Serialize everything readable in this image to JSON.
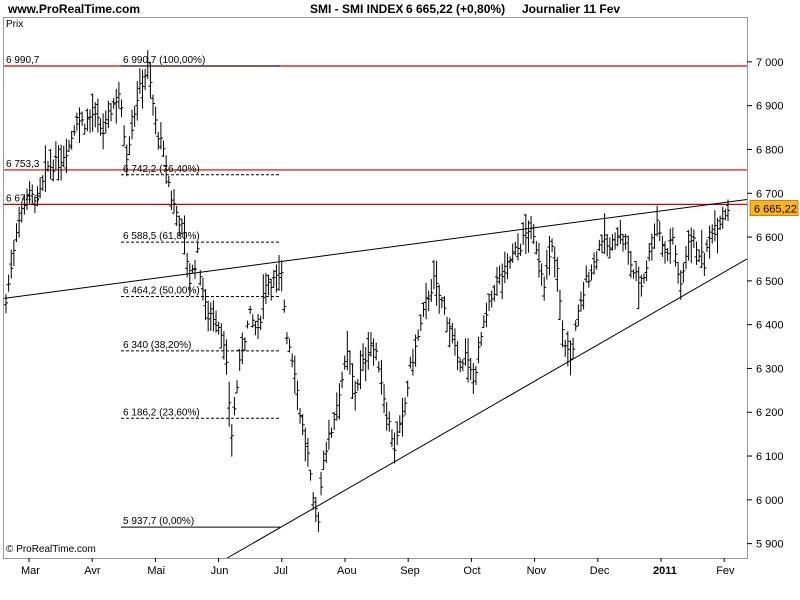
{
  "header": {
    "site": "www.ProRealTime.com",
    "title": "SMI - SMI INDEX",
    "price": "6 665,22 (+0,80%)",
    "period": "Journalier  11 Fev"
  },
  "ylabel": "Prix",
  "copyright": "© ProRealTime.com",
  "colors": {
    "bars": "#000000",
    "resistance": "#d40000",
    "last_price_badge": "#ffb31a",
    "fib": "#000000"
  },
  "chart_data": {
    "type": "ohlc",
    "title": "SMI - SMI INDEX",
    "ylim": [
      5890,
      7050
    ],
    "yticks": [
      5900,
      6000,
      6100,
      6200,
      6300,
      6400,
      6500,
      6600,
      6700,
      6800,
      6900,
      7000
    ],
    "ytick_labels": [
      "5 900",
      "6 000",
      "6 100",
      "6 200",
      "6 300",
      "6 400",
      "6 500",
      "6 600",
      "6 700",
      "6 800",
      "6 900",
      "7 000"
    ],
    "x_months": [
      {
        "label": "Mar",
        "bold": false
      },
      {
        "label": "Avr",
        "bold": false
      },
      {
        "label": "Mai",
        "bold": false
      },
      {
        "label": "Jun",
        "bold": false
      },
      {
        "label": "Jul",
        "bold": false
      },
      {
        "label": "Aou",
        "bold": false
      },
      {
        "label": "Sep",
        "bold": false
      },
      {
        "label": "Oct",
        "bold": false
      },
      {
        "label": "Nov",
        "bold": false
      },
      {
        "label": "Dec",
        "bold": false
      },
      {
        "label": "2011",
        "bold": true
      },
      {
        "label": "Fev",
        "bold": false
      }
    ],
    "last_price": "6 665,22",
    "last_value": 6665.22,
    "series": [
      {
        "name": "SMI",
        "anchors": [
          [
            0,
            6450
          ],
          [
            4,
            6620
          ],
          [
            8,
            6700
          ],
          [
            12,
            6680
          ],
          [
            16,
            6760
          ],
          [
            20,
            6770
          ],
          [
            24,
            6810
          ],
          [
            27,
            6870
          ],
          [
            30,
            6860
          ],
          [
            33,
            6880
          ],
          [
            37,
            6840
          ],
          [
            40,
            6890
          ],
          [
            43,
            6930
          ],
          [
            46,
            6790
          ],
          [
            50,
            6920
          ],
          [
            54,
            6990
          ],
          [
            57,
            6860
          ],
          [
            60,
            6790
          ],
          [
            63,
            6690
          ],
          [
            66,
            6640
          ],
          [
            68,
            6600
          ],
          [
            70,
            6500
          ],
          [
            73,
            6560
          ],
          [
            76,
            6440
          ],
          [
            79,
            6420
          ],
          [
            82,
            6390
          ],
          [
            84,
            6300
          ],
          [
            86,
            6150
          ],
          [
            88,
            6260
          ],
          [
            90,
            6350
          ],
          [
            93,
            6420
          ],
          [
            96,
            6380
          ],
          [
            99,
            6500
          ],
          [
            102,
            6500
          ],
          [
            105,
            6510
          ],
          [
            107,
            6380
          ],
          [
            110,
            6300
          ],
          [
            112,
            6200
          ],
          [
            115,
            6100
          ],
          [
            117,
            5990
          ],
          [
            119,
            5960
          ],
          [
            121,
            6100
          ],
          [
            124,
            6160
          ],
          [
            127,
            6250
          ],
          [
            130,
            6330
          ],
          [
            133,
            6250
          ],
          [
            136,
            6310
          ],
          [
            139,
            6360
          ],
          [
            142,
            6310
          ],
          [
            145,
            6200
          ],
          [
            148,
            6120
          ],
          [
            151,
            6180
          ],
          [
            154,
            6300
          ],
          [
            157,
            6370
          ],
          [
            160,
            6450
          ],
          [
            163,
            6500
          ],
          [
            166,
            6450
          ],
          [
            169,
            6400
          ],
          [
            172,
            6310
          ],
          [
            175,
            6330
          ],
          [
            178,
            6270
          ],
          [
            181,
            6370
          ],
          [
            184,
            6440
          ],
          [
            187,
            6500
          ],
          [
            190,
            6520
          ],
          [
            193,
            6560
          ],
          [
            196,
            6580
          ],
          [
            199,
            6620
          ],
          [
            202,
            6580
          ],
          [
            205,
            6500
          ],
          [
            208,
            6570
          ],
          [
            210,
            6520
          ],
          [
            212,
            6380
          ],
          [
            215,
            6320
          ],
          [
            218,
            6420
          ],
          [
            221,
            6500
          ],
          [
            224,
            6540
          ],
          [
            227,
            6600
          ],
          [
            230,
            6570
          ],
          [
            233,
            6610
          ],
          [
            236,
            6580
          ],
          [
            239,
            6520
          ],
          [
            242,
            6490
          ],
          [
            245,
            6560
          ],
          [
            248,
            6640
          ],
          [
            251,
            6560
          ],
          [
            254,
            6600
          ],
          [
            257,
            6480
          ],
          [
            260,
            6600
          ],
          [
            263,
            6580
          ],
          [
            266,
            6540
          ],
          [
            269,
            6620
          ],
          [
            272,
            6640
          ],
          [
            275,
            6665.22
          ]
        ]
      }
    ],
    "resistance_lines": [
      {
        "value": 6990.7,
        "label": "6 990,7"
      },
      {
        "value": 6753.3,
        "label": "6 753,3"
      },
      {
        "value": 6674.6,
        "label": "6 674,6"
      }
    ],
    "fibonacci": [
      {
        "value": 6990.7,
        "label": "6 990,7 (100,00%)"
      },
      {
        "value": 6742.2,
        "label": "6 742,2 (76,40%)"
      },
      {
        "value": 6588.5,
        "label": "6 588,5 (61,80%)"
      },
      {
        "value": 6464.2,
        "label": "6 464,2 (50,00%)"
      },
      {
        "value": 6340.0,
        "label": "6 340 (38,20%)"
      },
      {
        "value": 6186.2,
        "label": "6 186,2 (23,60%)"
      },
      {
        "value": 5937.7,
        "label": "5 937,7 (0,00%)"
      }
    ],
    "trendlines": [
      {
        "name": "upper",
        "from": [
          0,
          6460
        ],
        "to": [
          275,
          6680
        ]
      },
      {
        "name": "lower",
        "from": [
          88,
          5880
        ],
        "to": [
          275,
          6525
        ]
      }
    ]
  }
}
